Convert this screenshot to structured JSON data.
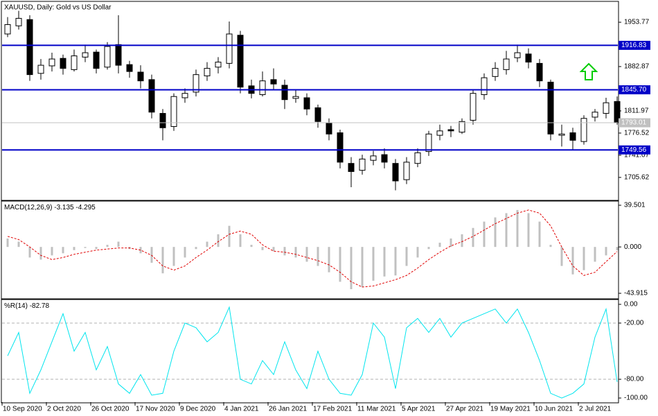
{
  "chart_data": [
    {
      "type": "candlestick",
      "title": "XAUUSD, Daily: Gold vs US Dollar",
      "categories": [
        "10 Sep 2020",
        null,
        null,
        null,
        "2 Oct 2020",
        null,
        null,
        null,
        "26 Oct 2020",
        null,
        null,
        null,
        "17 Nov 2020",
        null,
        null,
        null,
        "9 Dec 2020",
        null,
        null,
        null,
        "4 Jan 2021",
        null,
        null,
        null,
        "26 Jan 2021",
        null,
        null,
        null,
        "17 Feb 2021",
        null,
        null,
        null,
        "11 Mar 2021",
        null,
        null,
        null,
        "5 Apr 2021",
        null,
        null,
        null,
        "27 Apr 2021",
        null,
        null,
        null,
        "19 May 2021",
        null,
        null,
        null,
        "10 Jun 2021",
        null,
        null,
        null,
        "2 Jul 2021",
        null,
        null,
        null
      ],
      "open": [
        1935,
        1948,
        1958,
        1872,
        1884,
        1896,
        1878,
        1898,
        1906,
        1882,
        1918,
        1886,
        1874,
        1862,
        1808,
        1787,
        1833,
        1842,
        1868,
        1882,
        1888,
        1933,
        1852,
        1838,
        1862,
        1853,
        1832,
        1833,
        1817,
        1793,
        1777,
        1728,
        1717,
        1733,
        1742,
        1728,
        1702,
        1728,
        1747,
        1773,
        1782,
        1778,
        1797,
        1838,
        1867,
        1878,
        1897,
        1903,
        1888,
        1858,
        1773,
        1777,
        1763,
        1802,
        1808,
        1827
      ],
      "high": [
        1962,
        1972,
        1965,
        1895,
        1905,
        1902,
        1910,
        1918,
        1910,
        1922,
        1965,
        1892,
        1885,
        1870,
        1815,
        1840,
        1848,
        1878,
        1890,
        1898,
        1955,
        1940,
        1862,
        1875,
        1880,
        1862,
        1845,
        1840,
        1822,
        1800,
        1782,
        1738,
        1742,
        1748,
        1752,
        1735,
        1738,
        1752,
        1780,
        1790,
        1788,
        1800,
        1845,
        1872,
        1890,
        1908,
        1918,
        1912,
        1895,
        1862,
        1790,
        1785,
        1805,
        1815,
        1833,
        1835
      ],
      "low": [
        1930,
        1942,
        1860,
        1862,
        1875,
        1870,
        1875,
        1890,
        1872,
        1878,
        1872,
        1865,
        1848,
        1800,
        1765,
        1780,
        1825,
        1835,
        1860,
        1872,
        1880,
        1840,
        1832,
        1835,
        1845,
        1815,
        1825,
        1805,
        1785,
        1765,
        1720,
        1690,
        1710,
        1725,
        1720,
        1685,
        1695,
        1722,
        1740,
        1765,
        1770,
        1775,
        1790,
        1830,
        1860,
        1870,
        1890,
        1880,
        1850,
        1765,
        1755,
        1750,
        1758,
        1795,
        1800,
        1790
      ],
      "close": [
        1950,
        1960,
        1870,
        1885,
        1895,
        1880,
        1900,
        1905,
        1880,
        1915,
        1885,
        1875,
        1860,
        1810,
        1785,
        1835,
        1840,
        1870,
        1880,
        1890,
        1935,
        1850,
        1840,
        1860,
        1855,
        1830,
        1835,
        1815,
        1795,
        1775,
        1730,
        1715,
        1735,
        1740,
        1730,
        1700,
        1730,
        1745,
        1775,
        1780,
        1780,
        1795,
        1840,
        1865,
        1880,
        1895,
        1905,
        1890,
        1860,
        1775,
        1775,
        1765,
        1800,
        1810,
        1825,
        1793.01
      ],
      "up_color": "#ffffff",
      "down_color": "#000000",
      "ylim": [
        1670,
        1986
      ],
      "yticks": [
        1953.77,
        1882.87,
        1811.97,
        1776.52,
        1741.07,
        1705.62
      ],
      "levels": {
        "color": "#0000c8",
        "values": [
          1916.83,
          {
            "value": 1845.7,
            "label": "1845.70"
          },
          1749.56
        ]
      }
    },
    {
      "type": "macd",
      "title": "MACD(12,26,9)",
      "series": [
        {
          "color": "#c0c0c0",
          "values": [
            8,
            5,
            -10,
            -12,
            -8,
            -6,
            -3,
            -1,
            -2,
            2,
            5,
            -2,
            -6,
            -15,
            -25,
            -18,
            -10,
            -2,
            5,
            12,
            20,
            12,
            2,
            -3,
            -4,
            -8,
            -10,
            -14,
            -18,
            -24,
            -33,
            -40,
            -38,
            -32,
            -28,
            -27,
            -18,
            -10,
            -2,
            4,
            8,
            12,
            18,
            24,
            28,
            32,
            35,
            32,
            24,
            2,
            -18,
            -26,
            -22,
            -14,
            -8,
            -3.135
          ]
        },
        {
          "color": "#e00000",
          "values": [
            10,
            7,
            0,
            -8,
            -12,
            -10,
            -7,
            -5,
            -3,
            -2,
            -1,
            -1,
            -3,
            -8,
            -18,
            -22,
            -18,
            -10,
            -3,
            5,
            12,
            15,
            12,
            2,
            -4,
            -5,
            -7,
            -10,
            -13,
            -17,
            -24,
            -33,
            -38,
            -37,
            -34,
            -31,
            -27,
            -20,
            -12,
            -5,
            1,
            5,
            10,
            16,
            22,
            27,
            32,
            35,
            32,
            20,
            0,
            -18,
            -27,
            -24,
            -14,
            -4.295
          ]
        }
      ],
      "ylim": [
        -48.5,
        42.8
      ],
      "yticks": [
        39.501,
        {
          "value": 0,
          "label": "0.000"
        },
        -43.915
      ]
    },
    {
      "type": "line",
      "title": "%R(14)",
      "color": "#00e5ee",
      "grid": true,
      "values": [
        -55,
        -30,
        -95,
        -70,
        -40,
        -10,
        -50,
        -30,
        -70,
        -45,
        -85,
        -95,
        -75,
        -97,
        -95,
        -50,
        -20,
        -25,
        -40,
        -30,
        -3,
        -80,
        -85,
        -60,
        -75,
        -40,
        -70,
        -90,
        -50,
        -80,
        -95,
        -97,
        -75,
        -20,
        -35,
        -90,
        -25,
        -15,
        -30,
        -15,
        -35,
        -20,
        -15,
        -10,
        -5,
        -20,
        -5,
        -30,
        -60,
        -95,
        -100,
        -95,
        -85,
        -35,
        -5,
        -82.78
      ],
      "ylim": [
        -104.4,
        4.4
      ],
      "yticks": [
        {
          "value": 0,
          "label": "0.00"
        },
        {
          "value": -20,
          "label": "-20.00"
        },
        {
          "value": -80,
          "label": "-80.00"
        },
        {
          "value": -100,
          "label": "-100.00"
        }
      ]
    }
  ]
}
